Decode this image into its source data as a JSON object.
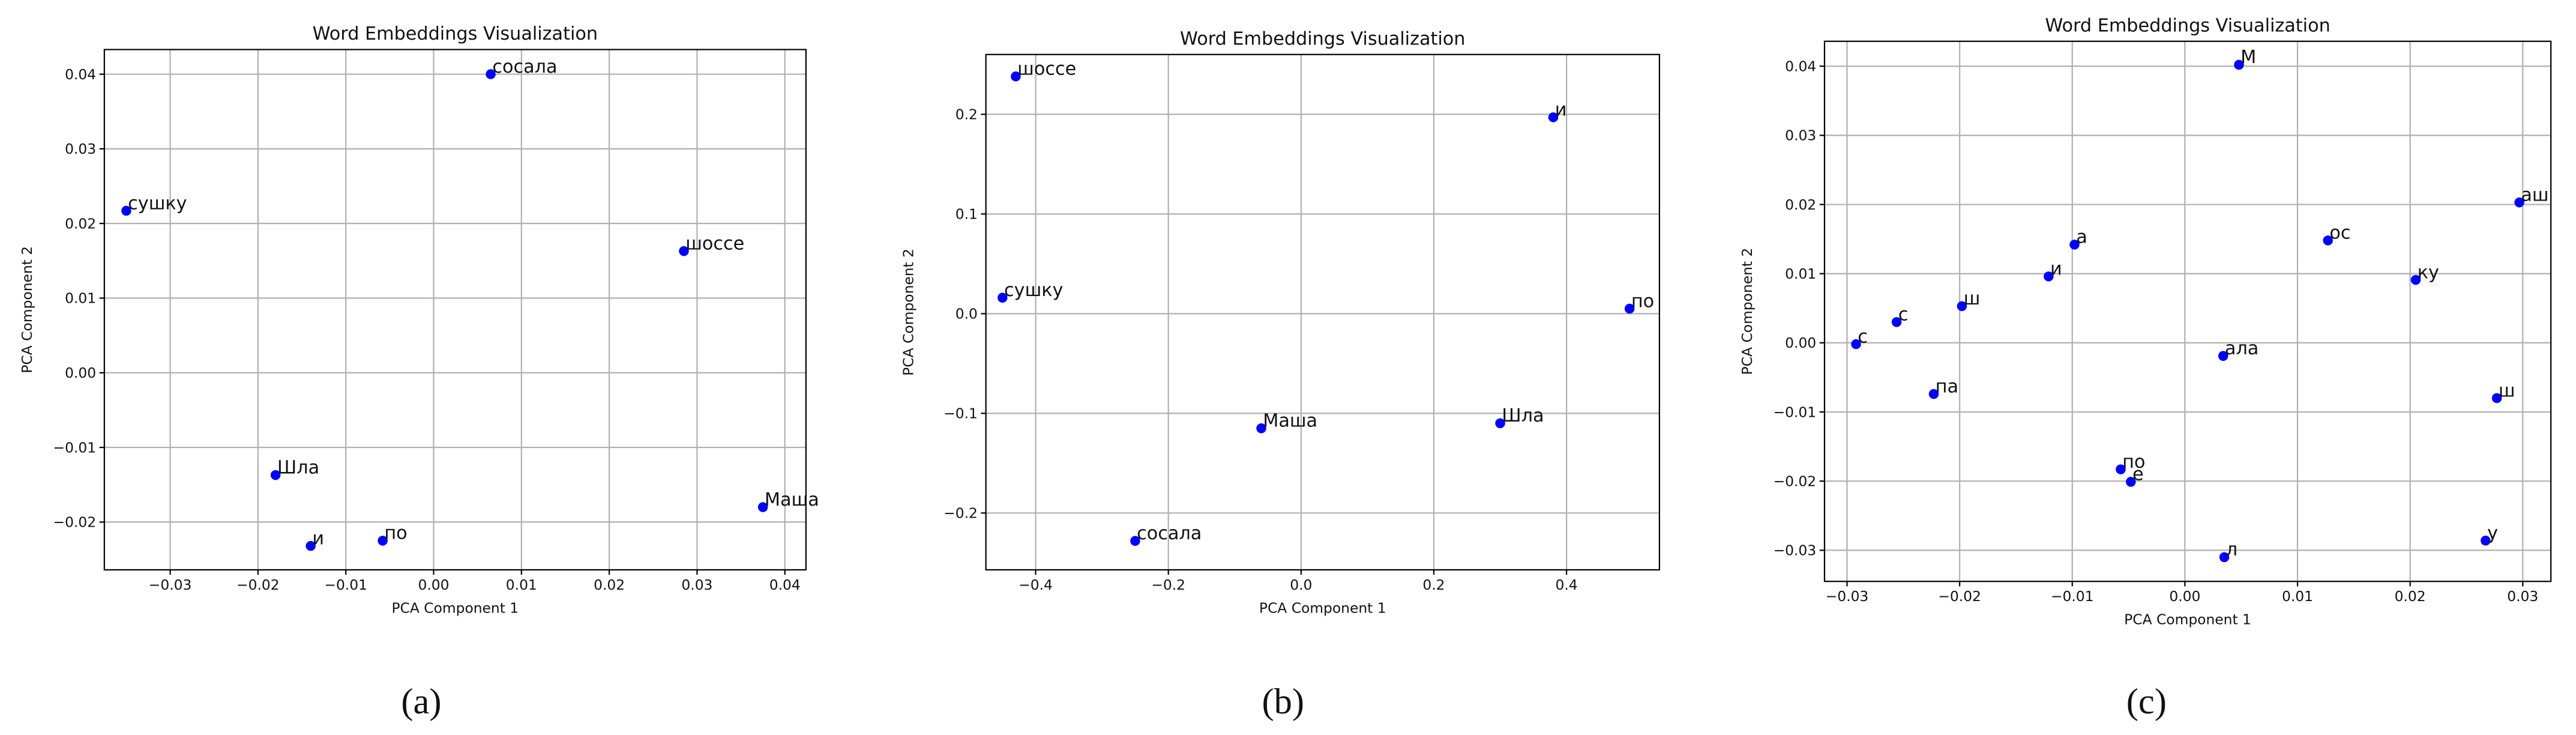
{
  "chart_data": [
    {
      "type": "scatter",
      "title": "Word Embeddings Visualization",
      "x_label": "PCA Component 1",
      "y_label": "PCA Component 2",
      "caption": "(a)",
      "color": "#0000ff",
      "grid": true,
      "x": [
        0.0065,
        -0.035,
        0.0285,
        -0.018,
        -0.014,
        -0.0058,
        0.0375
      ],
      "values": [
        0.04,
        0.0217,
        0.0163,
        -0.0137,
        -0.0232,
        -0.0225,
        -0.018
      ],
      "point_labels": [
        "сосала",
        "сушку",
        "шоссе",
        "Шла",
        "и",
        "по",
        "Маша"
      ],
      "xlim": [
        -0.0375,
        0.0424
      ],
      "ylim": [
        -0.0264,
        0.0433
      ],
      "xticks": [
        {
          "value": -0.03,
          "label": "−0.03"
        },
        {
          "value": -0.02,
          "label": "−0.02"
        },
        {
          "value": -0.01,
          "label": "−0.01"
        },
        {
          "value": 0,
          "label": "0.00"
        },
        0.01,
        0.02,
        0.03,
        0.04
      ],
      "yticks": [
        {
          "value": -0.02,
          "label": "−0.02"
        },
        {
          "value": -0.01,
          "label": "−0.01"
        },
        {
          "value": 0,
          "label": "0.00"
        },
        0.01,
        0.02,
        0.03,
        0.04
      ]
    },
    {
      "type": "scatter",
      "title": "Word Embeddings Visualization",
      "x_label": "PCA Component 1",
      "y_label": "PCA Component 2",
      "caption": "(b)",
      "color": "#0000ff",
      "grid": true,
      "x": [
        -0.43,
        0.38,
        -0.45,
        0.495,
        -0.06,
        0.3,
        -0.25
      ],
      "values": [
        0.238,
        0.197,
        0.016,
        0.005,
        -0.115,
        -0.11,
        -0.228
      ],
      "point_labels": [
        "шоссе",
        "и",
        "сушку",
        "по",
        "Маша",
        "Шла",
        "сосала"
      ],
      "xlim": [
        -0.475,
        0.54
      ],
      "ylim": [
        -0.257,
        0.26
      ],
      "xticks": [
        {
          "value": -0.4,
          "label": "−0.4"
        },
        {
          "value": -0.2,
          "label": "−0.2"
        },
        {
          "value": 0,
          "label": "0.0"
        },
        0.2,
        0.4
      ],
      "yticks": [
        {
          "value": -0.2,
          "label": "−0.2"
        },
        {
          "value": -0.1,
          "label": "−0.1"
        },
        {
          "value": 0,
          "label": "0.0"
        },
        0.1,
        0.2
      ]
    },
    {
      "type": "scatter",
      "title": "Word Embeddings Visualization",
      "x_label": "PCA Component 1",
      "y_label": "PCA Component 2",
      "caption": "(c)",
      "color": "#0000ff",
      "grid": true,
      "x": [
        0.0048,
        0.0297,
        -0.0098,
        0.0127,
        -0.0121,
        0.0205,
        -0.0198,
        -0.0256,
        -0.0292,
        0.0034,
        0.0277,
        -0.0223,
        -0.0057,
        -0.0048,
        0.0267,
        0.0035
      ],
      "values": [
        0.0402,
        0.0203,
        0.0142,
        0.0148,
        0.0096,
        0.0091,
        0.0053,
        0.003,
        -0.0002,
        -0.0019,
        -0.008,
        -0.0074,
        -0.0183,
        -0.0201,
        -0.0286,
        -0.031
      ],
      "point_labels": [
        "М",
        "аш",
        "а",
        "ос",
        "и",
        "ку",
        "ш",
        "с",
        "с",
        "ала",
        "ш",
        "па",
        "по",
        "е",
        "у",
        "л"
      ],
      "xlim": [
        -0.032,
        0.0325
      ],
      "ylim": [
        -0.0345,
        0.0436
      ],
      "xticks": [
        {
          "value": -0.03,
          "label": "−0.03"
        },
        {
          "value": -0.02,
          "label": "−0.02"
        },
        {
          "value": -0.01,
          "label": "−0.01"
        },
        {
          "value": 0,
          "label": "0.00"
        },
        0.01,
        0.02,
        0.03
      ],
      "yticks": [
        {
          "value": -0.03,
          "label": "−0.03"
        },
        {
          "value": -0.02,
          "label": "−0.02"
        },
        {
          "value": -0.01,
          "label": "−0.01"
        },
        {
          "value": 0,
          "label": "0.00"
        },
        0.01,
        0.02,
        0.03,
        0.04
      ]
    }
  ]
}
